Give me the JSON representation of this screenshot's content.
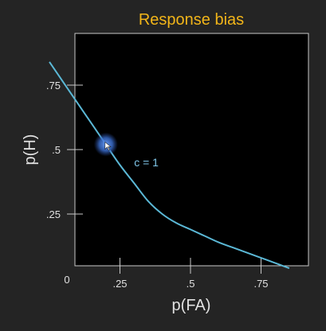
{
  "chart_data": {
    "type": "line",
    "title": "Response bias",
    "xlabel": "p(FA)",
    "ylabel": "p(H)",
    "xlim": [
      0,
      1
    ],
    "ylim": [
      0,
      1
    ],
    "x_ticks": [
      {
        "value": 0,
        "label": "0"
      },
      {
        "value": 0.25,
        "label": ".25"
      },
      {
        "value": 0.5,
        "label": ".5"
      },
      {
        "value": 0.75,
        "label": ".75"
      }
    ],
    "y_ticks": [
      {
        "value": 0.25,
        "label": ".25"
      },
      {
        "value": 0.5,
        "label": ".5"
      },
      {
        "value": 0.75,
        "label": ".75"
      }
    ],
    "grid": false,
    "series": [
      {
        "color": "#5bb8d6",
        "x": [
          0.0,
          0.05,
          0.1,
          0.15,
          0.2,
          0.25,
          0.3,
          0.35,
          0.4,
          0.45,
          0.5,
          0.55,
          0.6,
          0.65,
          0.7,
          0.75,
          0.8,
          0.85
        ],
        "y": [
          0.84,
          0.76,
          0.68,
          0.6,
          0.52,
          0.44,
          0.37,
          0.3,
          0.25,
          0.215,
          0.19,
          0.165,
          0.14,
          0.12,
          0.1,
          0.08,
          0.06,
          0.04
        ]
      }
    ],
    "annotations": [
      {
        "text": "c = 1",
        "x": 0.3,
        "y": 0.45
      }
    ],
    "marker": {
      "x": 0.2,
      "y": 0.52,
      "color": "#3a7cd6"
    }
  },
  "colors": {
    "background": "#242424",
    "plot_background": "#000000",
    "axis": "#c8c8c8",
    "title": "#f2b519"
  }
}
